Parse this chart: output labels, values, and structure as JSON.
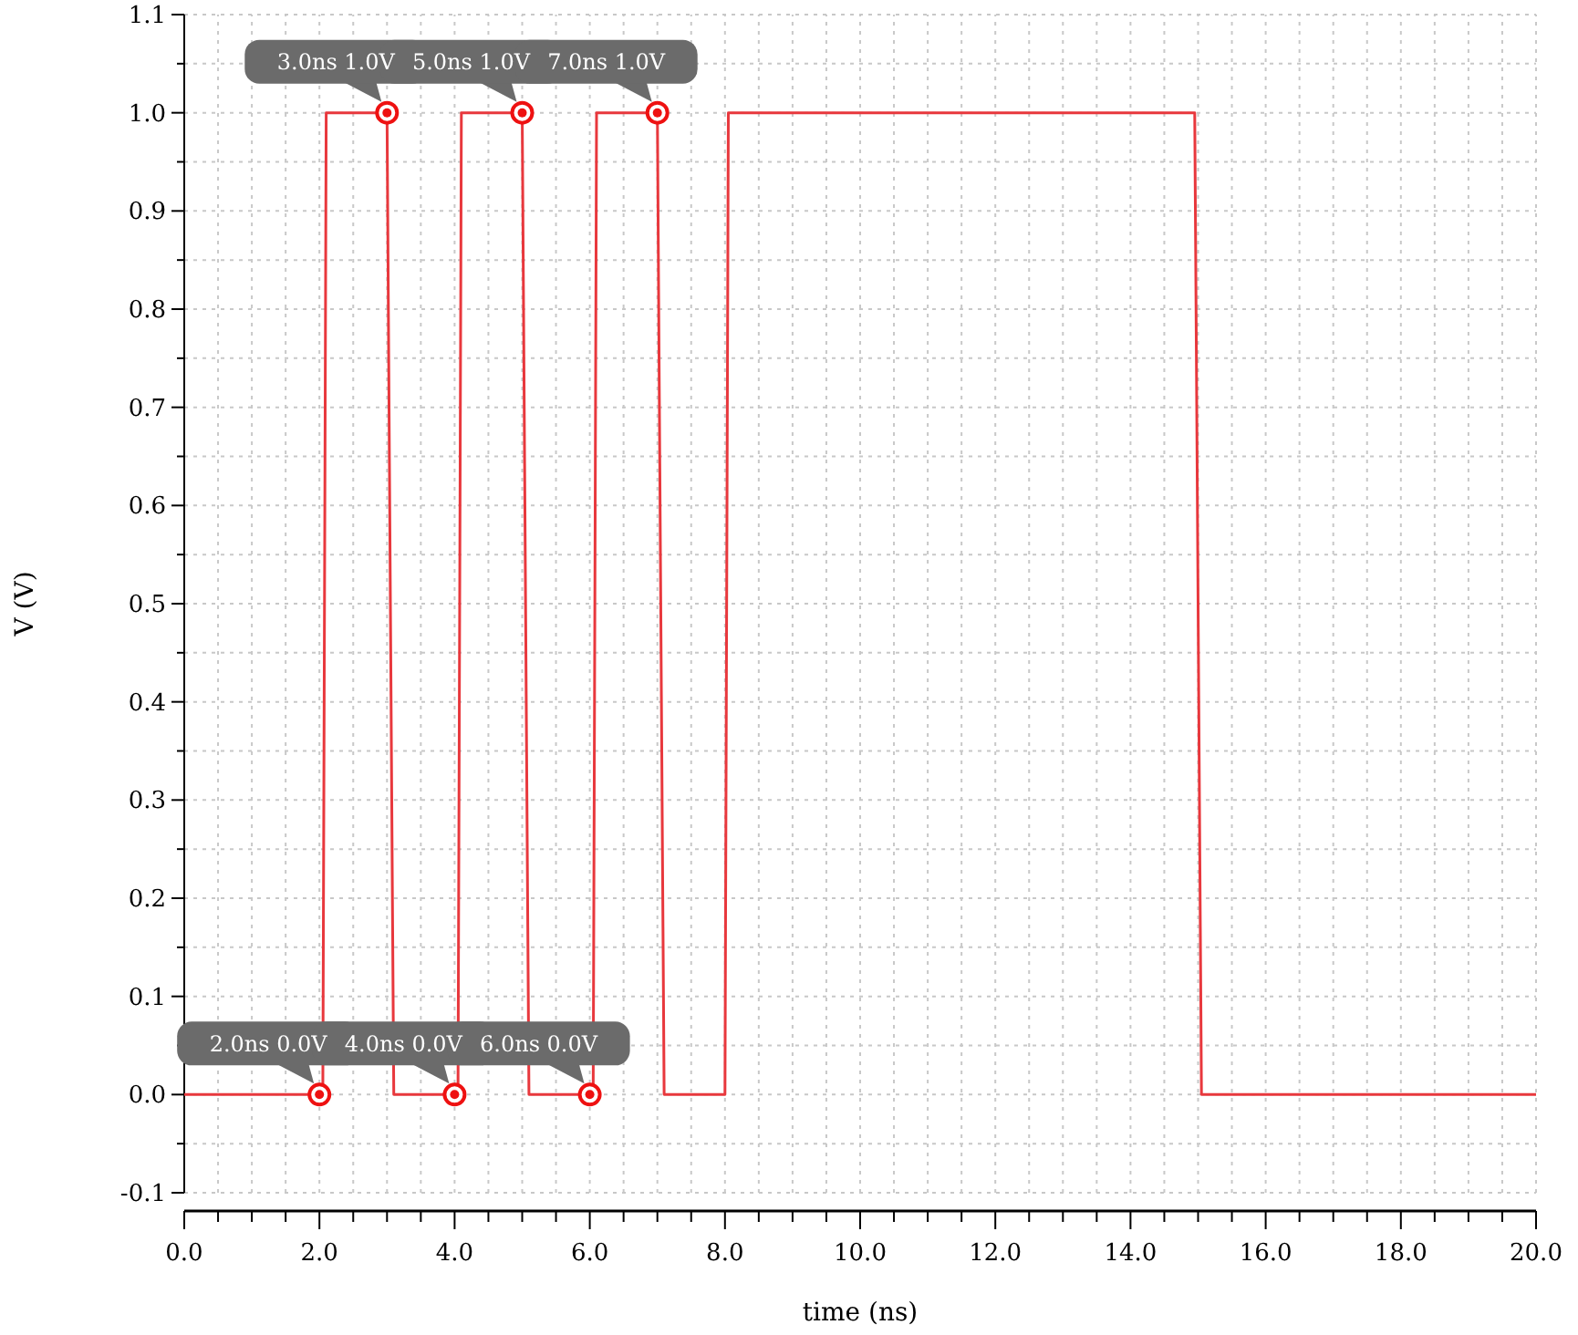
{
  "chart_data": {
    "type": "line",
    "xlabel": "time (ns)",
    "ylabel": "V (V)",
    "series": [
      {
        "color": "#e8383d",
        "marker": "none",
        "x": [
          0,
          2.05,
          2.1,
          3.0,
          3.1,
          4.05,
          4.1,
          5.0,
          5.1,
          6.05,
          6.1,
          7.0,
          7.1,
          8.0,
          8.05,
          14.95,
          15.05,
          20
        ],
        "values": [
          0,
          0,
          1,
          1,
          0,
          0,
          1,
          1,
          0,
          0,
          1,
          1,
          0,
          0,
          1,
          1,
          0,
          0
        ]
      },
      {
        "type": "scatter",
        "color": "#ee1111",
        "marker": "circle",
        "x": [
          2,
          3,
          4,
          5,
          6,
          7
        ],
        "values": [
          0,
          1,
          0,
          1,
          0,
          1
        ]
      }
    ],
    "annotations": [
      {
        "text": "2.0ns 0.0V",
        "x": 2,
        "y": 0
      },
      {
        "text": "3.0ns 1.0V",
        "x": 3,
        "y": 1
      },
      {
        "text": "4.0ns 0.0V",
        "x": 4,
        "y": 0
      },
      {
        "text": "5.0ns 1.0V",
        "x": 5,
        "y": 1
      },
      {
        "text": "6.0ns 0.0V",
        "x": 6,
        "y": 0
      },
      {
        "text": "7.0ns 1.0V",
        "x": 7,
        "y": 1
      }
    ],
    "xlim": [
      0,
      20
    ],
    "xticks": [
      {
        "value": 0,
        "label": "0.0"
      },
      {
        "value": 0.5,
        "label": null
      },
      {
        "value": 1,
        "label": null
      },
      {
        "value": 1.5,
        "label": null
      },
      {
        "value": 2,
        "label": "2.0"
      },
      {
        "value": 2.5,
        "label": null
      },
      {
        "value": 3,
        "label": null
      },
      {
        "value": 3.5,
        "label": null
      },
      {
        "value": 4,
        "label": "4.0"
      },
      {
        "value": 4.5,
        "label": null
      },
      {
        "value": 5,
        "label": null
      },
      {
        "value": 5.5,
        "label": null
      },
      {
        "value": 6,
        "label": "6.0"
      },
      {
        "value": 6.5,
        "label": null
      },
      {
        "value": 7,
        "label": null
      },
      {
        "value": 7.5,
        "label": null
      },
      {
        "value": 8,
        "label": "8.0"
      },
      {
        "value": 8.5,
        "label": null
      },
      {
        "value": 9,
        "label": null
      },
      {
        "value": 9.5,
        "label": null
      },
      {
        "value": 10,
        "label": "10.0"
      },
      {
        "value": 10.5,
        "label": null
      },
      {
        "value": 11,
        "label": null
      },
      {
        "value": 11.5,
        "label": null
      },
      {
        "value": 12,
        "label": "12.0"
      },
      {
        "value": 12.5,
        "label": null
      },
      {
        "value": 13,
        "label": null
      },
      {
        "value": 13.5,
        "label": null
      },
      {
        "value": 14,
        "label": "14.0"
      },
      {
        "value": 14.5,
        "label": null
      },
      {
        "value": 15,
        "label": null
      },
      {
        "value": 15.5,
        "label": null
      },
      {
        "value": 16,
        "label": "16.0"
      },
      {
        "value": 16.5,
        "label": null
      },
      {
        "value": 17,
        "label": null
      },
      {
        "value": 17.5,
        "label": null
      },
      {
        "value": 18,
        "label": "18.0"
      },
      {
        "value": 18.5,
        "label": null
      },
      {
        "value": 19,
        "label": null
      },
      {
        "value": 19.5,
        "label": null
      },
      {
        "value": 20,
        "label": "20.0"
      }
    ],
    "ylim": [
      -0.1,
      1.1
    ],
    "yticks": [
      {
        "value": -0.1,
        "label": "-0.1"
      },
      {
        "value": -0.05,
        "label": null
      },
      {
        "value": 0,
        "label": "0.0"
      },
      {
        "value": 0.05,
        "label": null
      },
      {
        "value": 0.1,
        "label": "0.1"
      },
      {
        "value": 0.15,
        "label": null
      },
      {
        "value": 0.2,
        "label": "0.2"
      },
      {
        "value": 0.25,
        "label": null
      },
      {
        "value": 0.3,
        "label": "0.3"
      },
      {
        "value": 0.35,
        "label": null
      },
      {
        "value": 0.4,
        "label": "0.4"
      },
      {
        "value": 0.45,
        "label": null
      },
      {
        "value": 0.5,
        "label": "0.5"
      },
      {
        "value": 0.55,
        "label": null
      },
      {
        "value": 0.6,
        "label": "0.6"
      },
      {
        "value": 0.65,
        "label": null
      },
      {
        "value": 0.7,
        "label": "0.7"
      },
      {
        "value": 0.75,
        "label": null
      },
      {
        "value": 0.8,
        "label": "0.8"
      },
      {
        "value": 0.85,
        "label": null
      },
      {
        "value": 0.9,
        "label": "0.9"
      },
      {
        "value": 0.95,
        "label": null
      },
      {
        "value": 1,
        "label": "1.0"
      },
      {
        "value": 1.05,
        "label": null
      },
      {
        "value": 1.1,
        "label": "1.1"
      }
    ],
    "grid": true,
    "line_style": "solid"
  }
}
